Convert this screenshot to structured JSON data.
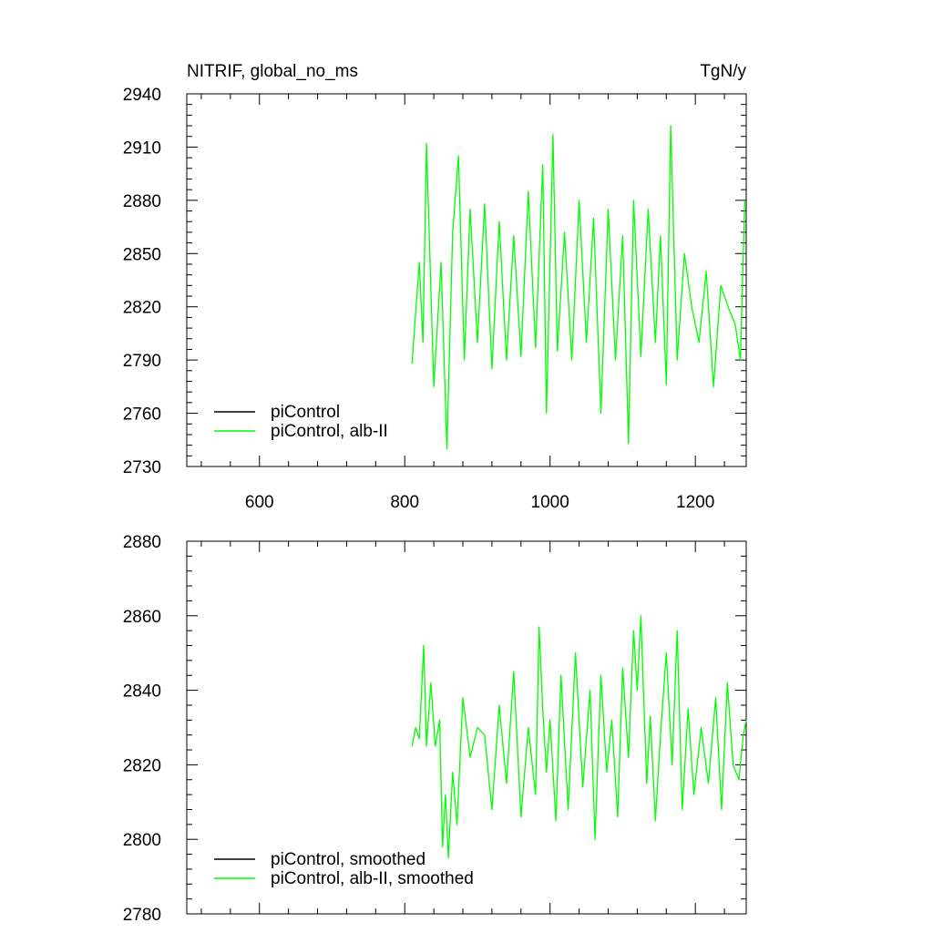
{
  "chart_data": [
    {
      "type": "line",
      "title_left": "NITRIF, global_no_ms",
      "title_right": "TgN/y",
      "xlabel": "",
      "ylabel": "",
      "xlim": [
        500,
        1270
      ],
      "ylim": [
        2730,
        2940
      ],
      "xticks": [
        600,
        800,
        1000,
        1200
      ],
      "yticks": [
        2730,
        2760,
        2790,
        2820,
        2850,
        2880,
        2910,
        2940
      ],
      "legend_position": "bottom-left",
      "series": [
        {
          "name": "piControl",
          "color": "#000000",
          "x": [],
          "y": []
        },
        {
          "name": "piControl, alb-II",
          "color": "#00ff00",
          "x": [
            810,
            820,
            825,
            830,
            840,
            850,
            858,
            866,
            874,
            882,
            890,
            900,
            910,
            920,
            930,
            940,
            950,
            960,
            970,
            980,
            990,
            995,
            1000,
            1004,
            1010,
            1020,
            1030,
            1040,
            1050,
            1060,
            1070,
            1080,
            1090,
            1100,
            1108,
            1115,
            1125,
            1135,
            1145,
            1152,
            1160,
            1166,
            1175,
            1185,
            1195,
            1205,
            1215,
            1225,
            1235,
            1245,
            1255,
            1262,
            1268
          ],
          "y": [
            2788,
            2845,
            2800,
            2912,
            2775,
            2845,
            2740,
            2862,
            2905,
            2790,
            2875,
            2800,
            2878,
            2785,
            2868,
            2790,
            2860,
            2792,
            2885,
            2797,
            2900,
            2760,
            2845,
            2917,
            2795,
            2862,
            2790,
            2880,
            2800,
            2870,
            2760,
            2875,
            2790,
            2860,
            2743,
            2880,
            2792,
            2875,
            2800,
            2860,
            2776,
            2922,
            2790,
            2850,
            2820,
            2800,
            2840,
            2775,
            2832,
            2820,
            2810,
            2790,
            2880
          ]
        }
      ]
    },
    {
      "type": "line",
      "xlim": [
        500,
        1270
      ],
      "ylim": [
        2780,
        2880
      ],
      "xticks": [
        600,
        800,
        1000,
        1200
      ],
      "yticks": [
        2780,
        2800,
        2820,
        2840,
        2860,
        2880
      ],
      "legend_position": "bottom-left",
      "series": [
        {
          "name": "piControl, smoothed",
          "color": "#000000",
          "x": [],
          "y": []
        },
        {
          "name": "piControl, alb-II, smoothed",
          "color": "#00ff00",
          "x": [
            810,
            815,
            820,
            826,
            830,
            836,
            842,
            848,
            852,
            856,
            860,
            866,
            872,
            880,
            890,
            900,
            910,
            920,
            930,
            940,
            950,
            960,
            970,
            980,
            985,
            990,
            995,
            1000,
            1008,
            1015,
            1025,
            1035,
            1045,
            1055,
            1062,
            1070,
            1078,
            1085,
            1093,
            1100,
            1108,
            1115,
            1120,
            1125,
            1133,
            1138,
            1145,
            1152,
            1160,
            1168,
            1175,
            1182,
            1190,
            1198,
            1208,
            1218,
            1228,
            1236,
            1244,
            1252,
            1260,
            1266,
            1270
          ],
          "y": [
            2825,
            2830,
            2827,
            2852,
            2825,
            2842,
            2825,
            2832,
            2798,
            2812,
            2795,
            2818,
            2804,
            2838,
            2822,
            2830,
            2828,
            2808,
            2836,
            2815,
            2845,
            2806,
            2830,
            2812,
            2857,
            2835,
            2818,
            2832,
            2805,
            2844,
            2808,
            2850,
            2814,
            2840,
            2800,
            2844,
            2818,
            2832,
            2806,
            2846,
            2822,
            2856,
            2840,
            2860,
            2815,
            2833,
            2805,
            2828,
            2850,
            2820,
            2856,
            2808,
            2835,
            2812,
            2830,
            2815,
            2838,
            2808,
            2842,
            2820,
            2816,
            2828,
            2832
          ]
        }
      ]
    }
  ]
}
